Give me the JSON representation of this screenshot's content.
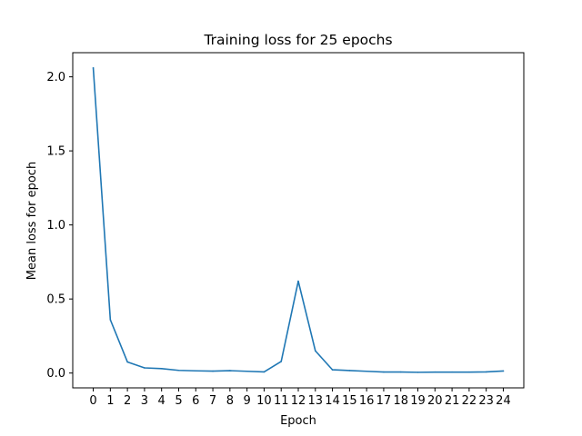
{
  "chart_data": {
    "type": "line",
    "title": "Training loss for 25 epochs",
    "xlabel": "Epoch",
    "ylabel": "Mean loss for epoch",
    "x": [
      0,
      1,
      2,
      3,
      4,
      5,
      6,
      7,
      8,
      9,
      10,
      11,
      12,
      13,
      14,
      15,
      16,
      17,
      18,
      19,
      20,
      21,
      22,
      23,
      24
    ],
    "series": [
      {
        "name": "Mean loss",
        "color": "#1f77b4",
        "values": [
          2.06,
          0.36,
          0.075,
          0.035,
          0.03,
          0.018,
          0.015,
          0.013,
          0.016,
          0.012,
          0.008,
          0.078,
          0.62,
          0.15,
          0.022,
          0.017,
          0.012,
          0.007,
          0.007,
          0.005,
          0.006,
          0.006,
          0.006,
          0.008,
          0.014
        ]
      }
    ],
    "xlim": [
      -1.2,
      25.2
    ],
    "ylim": [
      -0.1,
      2.163
    ],
    "yticks": [
      0.0,
      0.5,
      1.0,
      1.5,
      2.0
    ],
    "ytick_labels": [
      "0.0",
      "0.5",
      "1.0",
      "1.5",
      "2.0"
    ],
    "xtick_labels": [
      "0",
      "1",
      "2",
      "3",
      "4",
      "5",
      "6",
      "7",
      "8",
      "9",
      "10",
      "11",
      "12",
      "13",
      "14",
      "15",
      "16",
      "17",
      "18",
      "19",
      "20",
      "21",
      "22",
      "23",
      "24"
    ],
    "grid": false,
    "legend": "none"
  }
}
